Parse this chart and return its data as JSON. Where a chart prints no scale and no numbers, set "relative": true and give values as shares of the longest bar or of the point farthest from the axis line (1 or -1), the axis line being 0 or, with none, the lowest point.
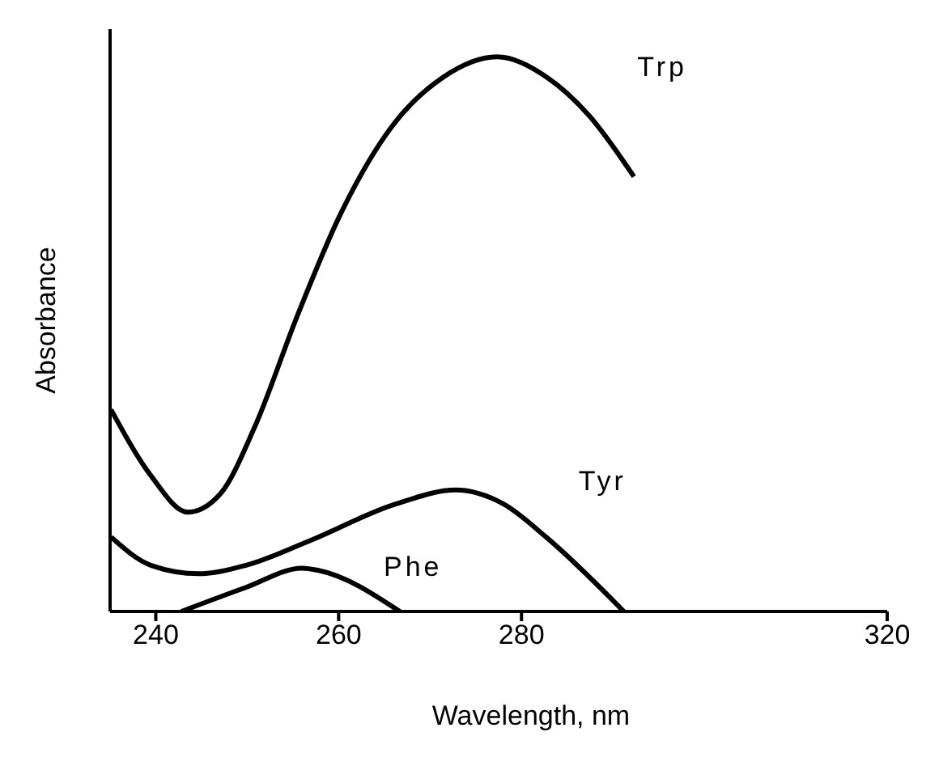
{
  "chart_data": {
    "type": "line",
    "xlabel": "Wavelength, nm",
    "ylabel": "Absorbance",
    "relative": true,
    "tick_labels": "x",
    "grid": false,
    "legend": false,
    "marker": "none",
    "line_style": "solid",
    "xlim": [
      235,
      320
    ],
    "xticks": [
      240,
      260,
      280,
      320
    ],
    "series": [
      {
        "name": "Trp",
        "color": "#000000",
        "x": [
          235.1,
          239.5,
          243.5,
          247.1,
          250.8,
          255.5,
          260.1,
          265.8,
          271.5,
          277.3,
          282.7,
          287.4,
          292.3
        ],
        "values": [
          0.364,
          0.244,
          0.179,
          0.213,
          0.332,
          0.534,
          0.713,
          0.874,
          0.964,
          1.0,
          0.964,
          0.894,
          0.784
        ]
      },
      {
        "name": "Tyr",
        "color": "#000000",
        "x": [
          235.1,
          239.5,
          244.7,
          249.8,
          256.9,
          266.3,
          272.8,
          278.0,
          282.7,
          291.2
        ],
        "values": [
          0.134,
          0.083,
          0.068,
          0.083,
          0.128,
          0.194,
          0.219,
          0.194,
          0.134,
          0
        ]
      },
      {
        "name": "Phe",
        "color": "#000000",
        "x": [
          242.8,
          249.8,
          256.0,
          257.8,
          266.7
        ],
        "values": [
          0,
          0.043,
          0.078,
          0.074,
          0
        ]
      }
    ]
  }
}
